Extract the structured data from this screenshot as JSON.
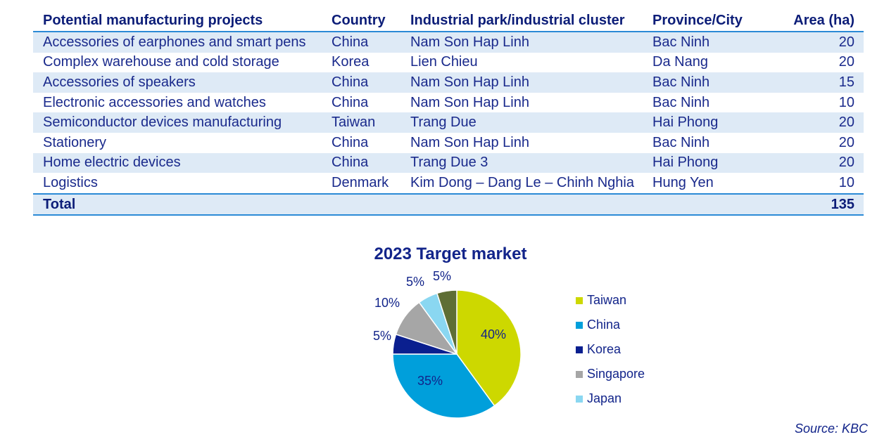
{
  "table": {
    "headers": [
      "Potential manufacturing projects",
      "Country",
      "Industrial park/industrial cluster",
      "Province/City",
      "Area (ha)"
    ],
    "rows": [
      [
        "Accessories of earphones and smart pens",
        "China",
        "Nam Son Hap Linh",
        "Bac Ninh",
        "20"
      ],
      [
        "Complex warehouse and cold storage",
        "Korea",
        "Lien Chieu",
        "Da Nang",
        "20"
      ],
      [
        "Accessories of speakers",
        "China",
        "Nam Son Hap Linh",
        "Bac Ninh",
        "15"
      ],
      [
        "Electronic accessories and watches",
        "China",
        "Nam Son Hap Linh",
        "Bac Ninh",
        "10"
      ],
      [
        "Semiconductor devices manufacturing",
        "Taiwan",
        "Trang Due",
        "Hai Phong",
        "20"
      ],
      [
        "Stationery",
        "China",
        "Nam Son Hap Linh",
        "Bac Ninh",
        "20"
      ],
      [
        "Home electric devices",
        "China",
        "Trang Due 3",
        "Hai Phong",
        "20"
      ],
      [
        "Logistics",
        "Denmark",
        "Kim Dong – Dang Le – Chinh Nghia",
        "Hung Yen",
        "10"
      ]
    ],
    "total_label": "Total",
    "total_value": "135"
  },
  "chart_data": {
    "type": "pie",
    "title": "2023 Target market",
    "categories": [
      "Taiwan",
      "China",
      "Korea",
      "Singapore",
      "Japan",
      ""
    ],
    "values": [
      40,
      35,
      5,
      10,
      5,
      5
    ],
    "value_labels": [
      "40%",
      "35%",
      "5%",
      "10%",
      "5%",
      "5%"
    ],
    "colors": [
      "#cdd800",
      "#009fdb",
      "#0a1f8f",
      "#a6a6a6",
      "#8ad7f1",
      "#5e6e35"
    ],
    "legend_entries": [
      "Taiwan",
      "China",
      "Korea",
      "Singapore",
      "Japan"
    ],
    "legend_position": "right"
  },
  "source": "Source: KBC"
}
